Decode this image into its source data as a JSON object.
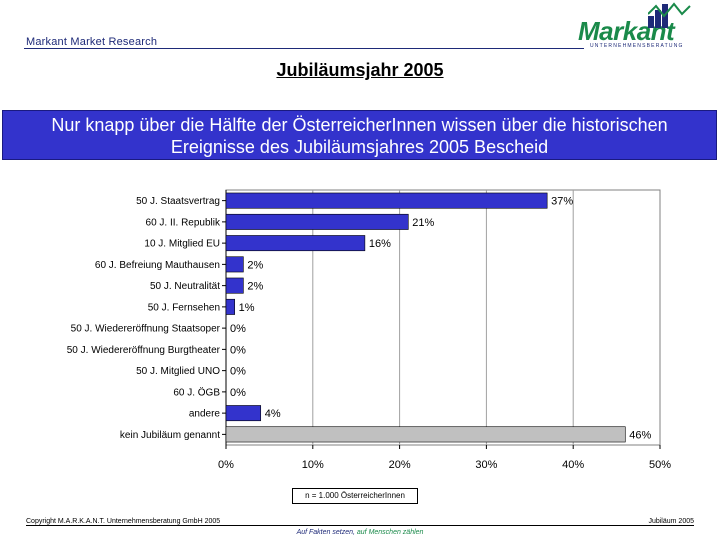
{
  "header": {
    "brand_left": "Markant Market Research",
    "logo_word": "Markant",
    "logo_sub": "UNTERNEHMENSBERATUNG"
  },
  "title": "Jubiläumsjahr 2005",
  "banner": {
    "line1": "Nur knapp über die Hälfte der ÖsterreicherInnen wissen über die historischen",
    "line2": "Ereignisse des Jubiläumsjahres 2005 Bescheid"
  },
  "chart_data": {
    "type": "bar",
    "orientation": "horizontal",
    "categories": [
      "50 J. Staatsvertrag",
      "60 J. II. Republik",
      "10 J. Mitglied EU",
      "60 J. Befreiung Mauthausen",
      "50 J. Neutralität",
      "50 J. Fernsehen",
      "50 J. Wiedereröffnung Staatsoper",
      "50 J. Wiedereröffnung Burgtheater",
      "50 J. Mitglied UNO",
      "60 J. ÖGB",
      "andere",
      "kein Jubiläum genannt"
    ],
    "values": [
      37,
      21,
      16,
      2,
      2,
      1,
      0,
      0,
      0,
      0,
      4,
      46
    ],
    "value_labels": [
      "37%",
      "21%",
      "16%",
      "2%",
      "2%",
      "1%",
      "0%",
      "0%",
      "0%",
      "0%",
      "4%",
      "46%"
    ],
    "xlim": [
      0,
      50
    ],
    "xticks": [
      "0%",
      "10%",
      "20%",
      "30%",
      "40%",
      "50%"
    ],
    "grid": true,
    "colors": {
      "bar": "#3333cc",
      "highlight_bar": "#c0c0c0",
      "bar_border": "#000000"
    },
    "highlight_index": 11,
    "note": "n = 1.000 ÖsterreicherInnen"
  },
  "footer": {
    "left": "Copyright M.A.R.K.A.N.T. Unternehmensberatung GmbH 2005",
    "right": "Jubiläum 2005",
    "tagline_a": "Auf Fakten setzen,",
    "tagline_b": "auf Menschen zählen"
  }
}
